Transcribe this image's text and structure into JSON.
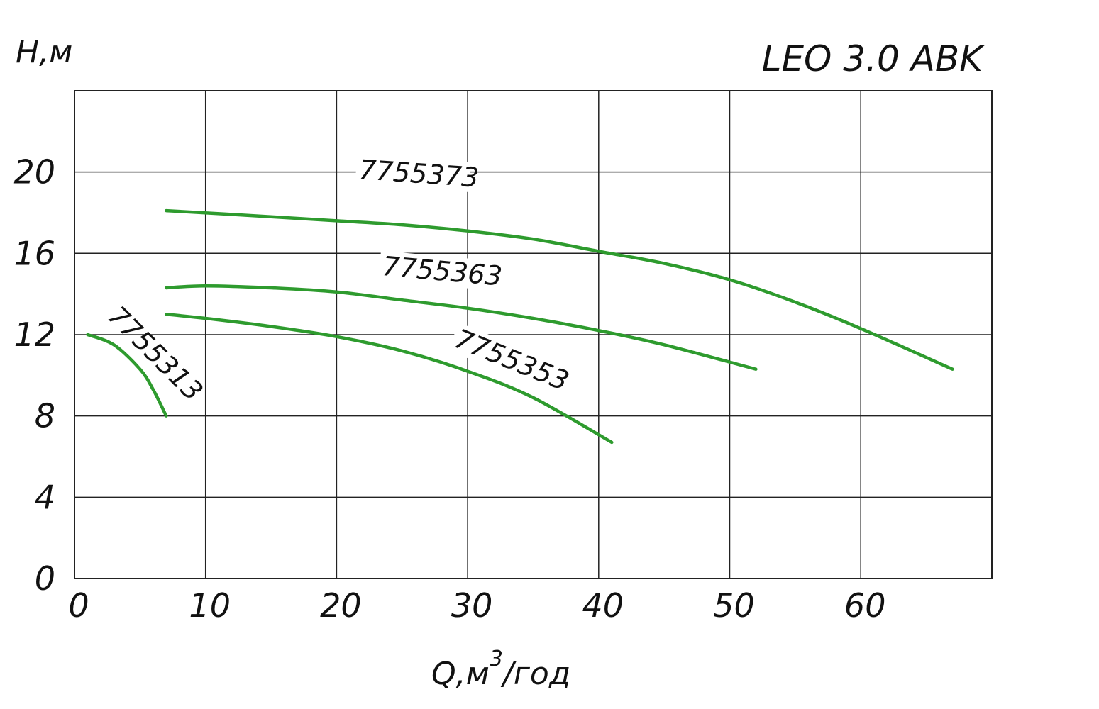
{
  "chart_data": {
    "type": "line",
    "title": "LEO 3.0 ABK",
    "ylabel": "H,м",
    "xlabel": "Q,м",
    "xlabel_sup": "3",
    "xlabel_suffix": "/год",
    "xlim": [
      0,
      70
    ],
    "ylim": [
      0,
      24
    ],
    "xticks": [
      "0",
      "10",
      "20",
      "30",
      "40",
      "50",
      "60"
    ],
    "yticks": [
      "0",
      "4",
      "8",
      "12",
      "16",
      "20"
    ],
    "grid": true,
    "line_color": "#2e9b2e",
    "series": [
      {
        "name": "7755313",
        "x": [
          1,
          3,
          5,
          6,
          7
        ],
        "y": [
          12.0,
          11.5,
          10.3,
          9.3,
          8.0
        ]
      },
      {
        "name": "7755353",
        "x": [
          7,
          10,
          15,
          20,
          25,
          30,
          35,
          41
        ],
        "y": [
          13.0,
          12.8,
          12.4,
          11.9,
          11.2,
          10.2,
          8.9,
          6.7
        ]
      },
      {
        "name": "7755363",
        "x": [
          7,
          10,
          15,
          20,
          25,
          30,
          35,
          40,
          45,
          52
        ],
        "y": [
          14.3,
          14.4,
          14.3,
          14.1,
          13.7,
          13.3,
          12.8,
          12.2,
          11.5,
          10.3
        ]
      },
      {
        "name": "7755373",
        "x": [
          7,
          15,
          20,
          25,
          30,
          35,
          40,
          45,
          50,
          55,
          60,
          67
        ],
        "y": [
          18.1,
          17.8,
          17.6,
          17.4,
          17.1,
          16.7,
          16.1,
          15.5,
          14.7,
          13.6,
          12.3,
          10.3
        ]
      }
    ]
  }
}
